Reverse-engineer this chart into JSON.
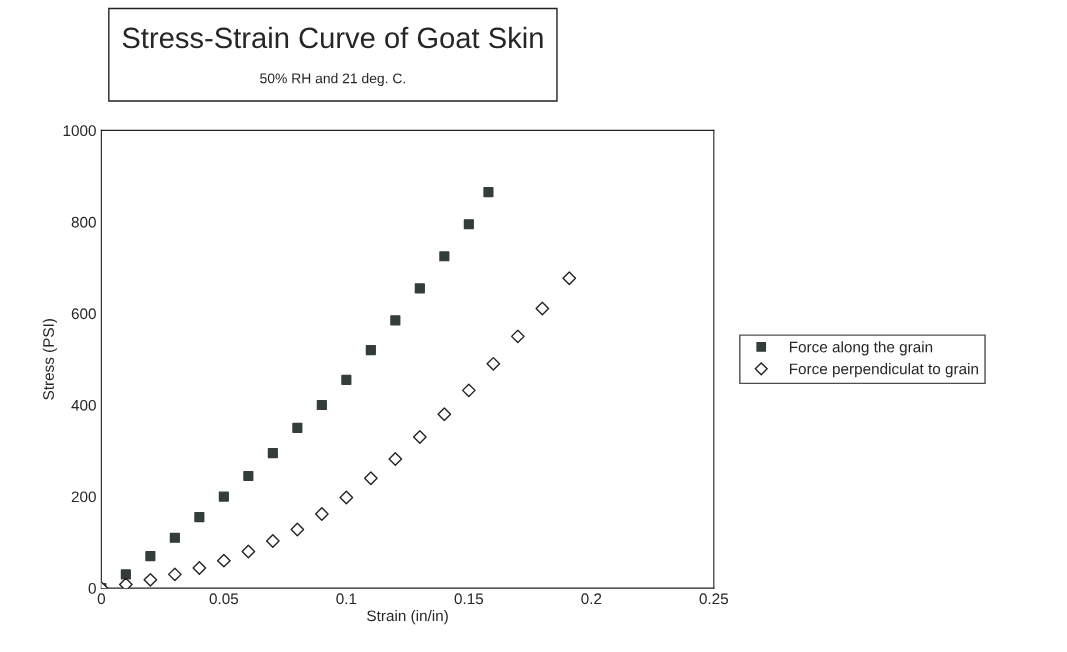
{
  "chart_data": {
    "type": "scatter",
    "title": "Stress-Strain Curve of Goat Skin",
    "subtitle": "50% RH and 21 deg. C.",
    "xlabel": "Strain (in/in)",
    "ylabel": "Stress (PSI)",
    "xlim": [
      0,
      0.25
    ],
    "xticks": [
      0,
      0.05,
      0.1,
      0.15,
      0.2,
      0.25
    ],
    "ylim": [
      0,
      1000
    ],
    "yticks": [
      0,
      200,
      400,
      600,
      800,
      1000
    ],
    "grid": false,
    "legend": "right",
    "series": [
      {
        "name": "Force along the grain",
        "color": "#333d3a",
        "marker": "square",
        "x": [
          0,
          0.01,
          0.02,
          0.03,
          0.04,
          0.05,
          0.06,
          0.07,
          0.08,
          0.09,
          0.1,
          0.11,
          0.12,
          0.13,
          0.14,
          0.15,
          0.158
        ],
        "values": [
          0,
          30,
          70,
          110,
          155,
          200,
          245,
          295,
          350,
          400,
          455,
          520,
          585,
          655,
          725,
          795,
          865
        ]
      },
      {
        "name": "Force perpendiculat to grain",
        "color": "#222222",
        "marker": "diamond",
        "x": [
          0,
          0.01,
          0.02,
          0.03,
          0.04,
          0.05,
          0.06,
          0.07,
          0.08,
          0.09,
          0.1,
          0.11,
          0.12,
          0.13,
          0.14,
          0.15,
          0.16,
          0.17,
          0.18,
          0.191
        ],
        "values": [
          0,
          8,
          18,
          30,
          44,
          60,
          80,
          103,
          128,
          162,
          198,
          240,
          282,
          330,
          380,
          432,
          490,
          550,
          611,
          677
        ]
      }
    ]
  }
}
